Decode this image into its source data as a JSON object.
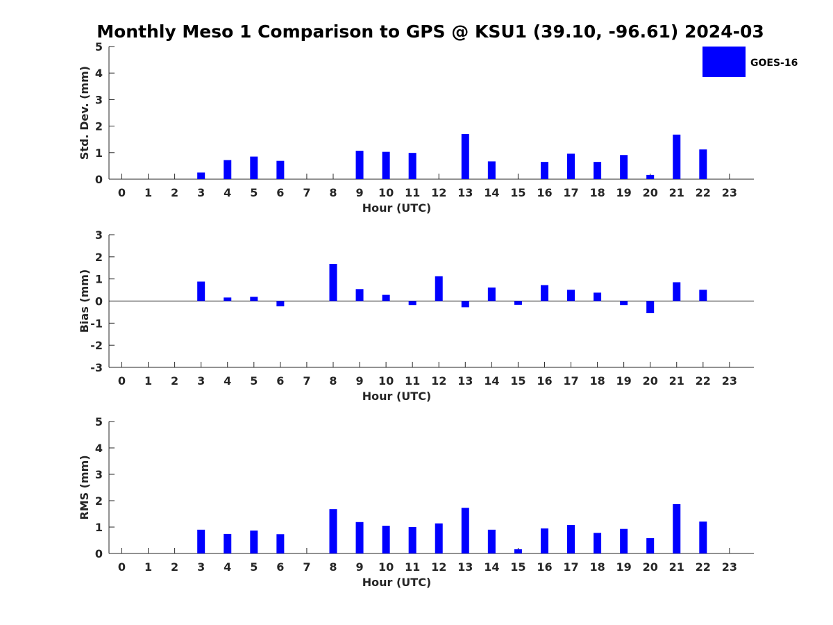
{
  "title": "Monthly Meso 1 Comparison to GPS @ KSU1 (39.10, -96.61) 2024-03",
  "legend": {
    "label": "GOES-16",
    "placement": "top-right"
  },
  "bar_color": "#0000ff",
  "chart_data": [
    {
      "type": "bar",
      "series_name": "GOES-16",
      "xlabel": "Hour (UTC)",
      "ylabel": "Std. Dev. (mm)",
      "ylim": [
        0,
        5
      ],
      "yticks": [
        0,
        1,
        2,
        3,
        4,
        5
      ],
      "categories": [
        "0",
        "1",
        "2",
        "3",
        "4",
        "5",
        "6",
        "7",
        "8",
        "9",
        "10",
        "11",
        "12",
        "13",
        "14",
        "15",
        "16",
        "17",
        "18",
        "19",
        "20",
        "21",
        "22",
        "23"
      ],
      "values": [
        null,
        null,
        null,
        0.25,
        0.72,
        0.85,
        0.69,
        null,
        null,
        1.07,
        1.03,
        0.99,
        null,
        1.7,
        0.67,
        null,
        0.65,
        0.96,
        0.65,
        0.91,
        0.16,
        1.68,
        1.12,
        null
      ]
    },
    {
      "type": "bar",
      "series_name": "GOES-16",
      "xlabel": "Hour (UTC)",
      "ylabel": "Bias (mm)",
      "ylim": [
        -3,
        3
      ],
      "yticks": [
        -3,
        -2,
        -1,
        0,
        1,
        2,
        3
      ],
      "zero_line": true,
      "categories": [
        "0",
        "1",
        "2",
        "3",
        "4",
        "5",
        "6",
        "7",
        "8",
        "9",
        "10",
        "11",
        "12",
        "13",
        "14",
        "15",
        "16",
        "17",
        "18",
        "19",
        "20",
        "21",
        "22",
        "23"
      ],
      "values": [
        null,
        null,
        null,
        0.88,
        0.16,
        0.19,
        -0.24,
        null,
        1.68,
        0.54,
        0.28,
        -0.18,
        1.12,
        -0.28,
        0.61,
        -0.17,
        0.72,
        0.51,
        0.38,
        -0.18,
        -0.55,
        0.85,
        0.51,
        null
      ]
    },
    {
      "type": "bar",
      "series_name": "GOES-16",
      "xlabel": "Hour (UTC)",
      "ylabel": "RMS (mm)",
      "ylim": [
        0,
        5
      ],
      "yticks": [
        0,
        1,
        2,
        3,
        4,
        5
      ],
      "categories": [
        "0",
        "1",
        "2",
        "3",
        "4",
        "5",
        "6",
        "7",
        "8",
        "9",
        "10",
        "11",
        "12",
        "13",
        "14",
        "15",
        "16",
        "17",
        "18",
        "19",
        "20",
        "21",
        "22",
        "23"
      ],
      "values": [
        null,
        null,
        null,
        0.9,
        0.74,
        0.87,
        0.73,
        null,
        1.68,
        1.19,
        1.05,
        1.0,
        1.14,
        1.73,
        0.9,
        0.16,
        0.95,
        1.08,
        0.78,
        0.93,
        0.58,
        1.87,
        1.21,
        null
      ]
    }
  ]
}
